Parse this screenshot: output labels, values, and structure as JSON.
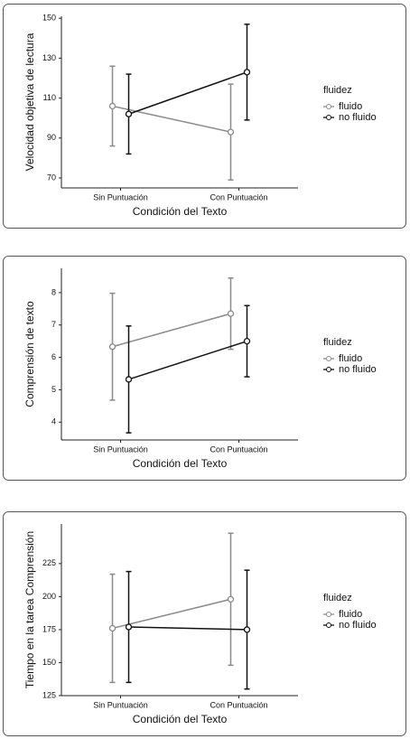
{
  "chart_data": [
    {
      "type": "line",
      "ylabel": "Velocidad objetiva de lectura",
      "xlabel": "Condición del Texto",
      "categories": [
        "Sin Puntuación",
        "Con Puntuación"
      ],
      "series": [
        {
          "name": "fluido",
          "color": "#8a8a8a",
          "values": [
            106,
            93
          ],
          "errors": [
            20,
            24
          ]
        },
        {
          "name": "no fluido",
          "color": "#111111",
          "values": [
            102,
            123
          ],
          "errors": [
            20,
            24
          ]
        }
      ],
      "ylim": [
        65,
        151
      ],
      "yticks": [
        70,
        90,
        110,
        130,
        150
      ],
      "legend_title": "fluidez",
      "legend": "right"
    },
    {
      "type": "line",
      "ylabel": "Comprensión de texto",
      "xlabel": "Condición del Texto",
      "categories": [
        "Sin Puntuación",
        "Con Puntuación"
      ],
      "series": [
        {
          "name": "fluido",
          "color": "#8a8a8a",
          "values": [
            6.33,
            7.35
          ],
          "errors": [
            1.65,
            1.1
          ]
        },
        {
          "name": "no fluido",
          "color": "#111111",
          "values": [
            5.32,
            6.5
          ],
          "errors": [
            1.65,
            1.1
          ]
        }
      ],
      "ylim": [
        3.45,
        8.75
      ],
      "yticks": [
        4,
        5,
        6,
        7,
        8
      ],
      "legend_title": "fluidez",
      "legend": "right"
    },
    {
      "type": "line",
      "ylabel": "Tiempo en la tarea Comprensión",
      "xlabel": "Condición del Texto",
      "categories": [
        "Sin Puntuación",
        "Con Puntuación"
      ],
      "series": [
        {
          "name": "fluido",
          "color": "#8a8a8a",
          "values": [
            176,
            198
          ],
          "errors": [
            41,
            50
          ]
        },
        {
          "name": "no fluido",
          "color": "#111111",
          "values": [
            177,
            175
          ],
          "errors": [
            42,
            45
          ]
        }
      ],
      "ylim": [
        125,
        255
      ],
      "yticks": [
        125,
        150,
        175,
        200,
        225
      ],
      "legend_title": "fluidez",
      "legend": "right"
    }
  ]
}
